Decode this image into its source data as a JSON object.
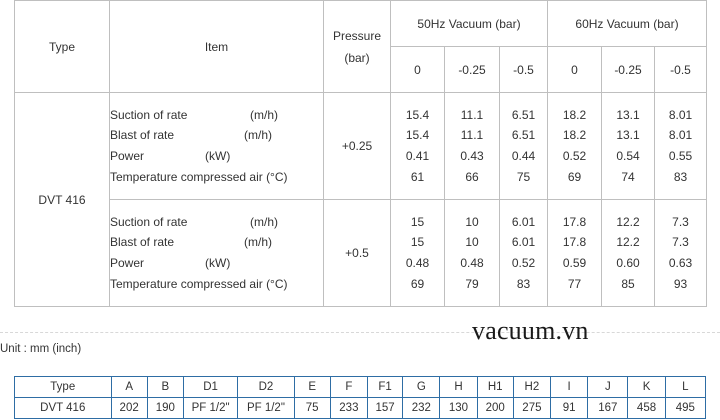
{
  "performance": {
    "headers": {
      "type": "Type",
      "item": "Item",
      "pressure_line1": "Pressure",
      "pressure_line2": "(bar)",
      "hz50": "50Hz  Vacuum (bar)",
      "hz60": "60Hz  Vacuum (bar)",
      "vacuum_levels": [
        "0",
        "-0.25",
        "-0.5"
      ]
    },
    "model": "DVT 416",
    "items": [
      {
        "name": "Suction of rate",
        "unit": "(m/h)"
      },
      {
        "name": "Blast of rate",
        "unit": "(m/h)"
      },
      {
        "name": "Power",
        "unit": "(kW)"
      },
      {
        "name": "Temperature compressed air (°C)",
        "unit": ""
      }
    ],
    "blocks": [
      {
        "pressure": "+0.25",
        "hz50": [
          [
            "15.4",
            "11.1",
            "6.51"
          ],
          [
            "15.4",
            "11.1",
            "6.51"
          ],
          [
            "0.41",
            "0.43",
            "0.44"
          ],
          [
            "61",
            "66",
            "75"
          ]
        ],
        "hz60": [
          [
            "18.2",
            "13.1",
            "8.01"
          ],
          [
            "18.2",
            "13.1",
            "8.01"
          ],
          [
            "0.52",
            "0.54",
            "0.55"
          ],
          [
            "69",
            "74",
            "83"
          ]
        ]
      },
      {
        "pressure": "+0.5",
        "hz50": [
          [
            "15",
            "10",
            "6.01"
          ],
          [
            "15",
            "10",
            "6.01"
          ],
          [
            "0.48",
            "0.48",
            "0.52"
          ],
          [
            "69",
            "79",
            "83"
          ]
        ],
        "hz60": [
          [
            "17.8",
            "12.2",
            "7.3"
          ],
          [
            "17.8",
            "12.2",
            "7.3"
          ],
          [
            "0.59",
            "0.60",
            "0.63"
          ],
          [
            "77",
            "85",
            "93"
          ]
        ]
      }
    ]
  },
  "watermark": "vacuum.vn",
  "unit_note": "Unit : mm (inch)",
  "dimensions": {
    "headers": [
      "Type",
      "A",
      "B",
      "D1",
      "D2",
      "E",
      "F",
      "F1",
      "G",
      "H",
      "H1",
      "H2",
      "I",
      "J",
      "K",
      "L"
    ],
    "rows": [
      [
        "DVT 416",
        "202",
        "190",
        "PF 1/2\"",
        "PF 1/2\"",
        "75",
        "233",
        "157",
        "232",
        "130",
        "200",
        "275",
        "91",
        "167",
        "458",
        "495"
      ]
    ]
  }
}
